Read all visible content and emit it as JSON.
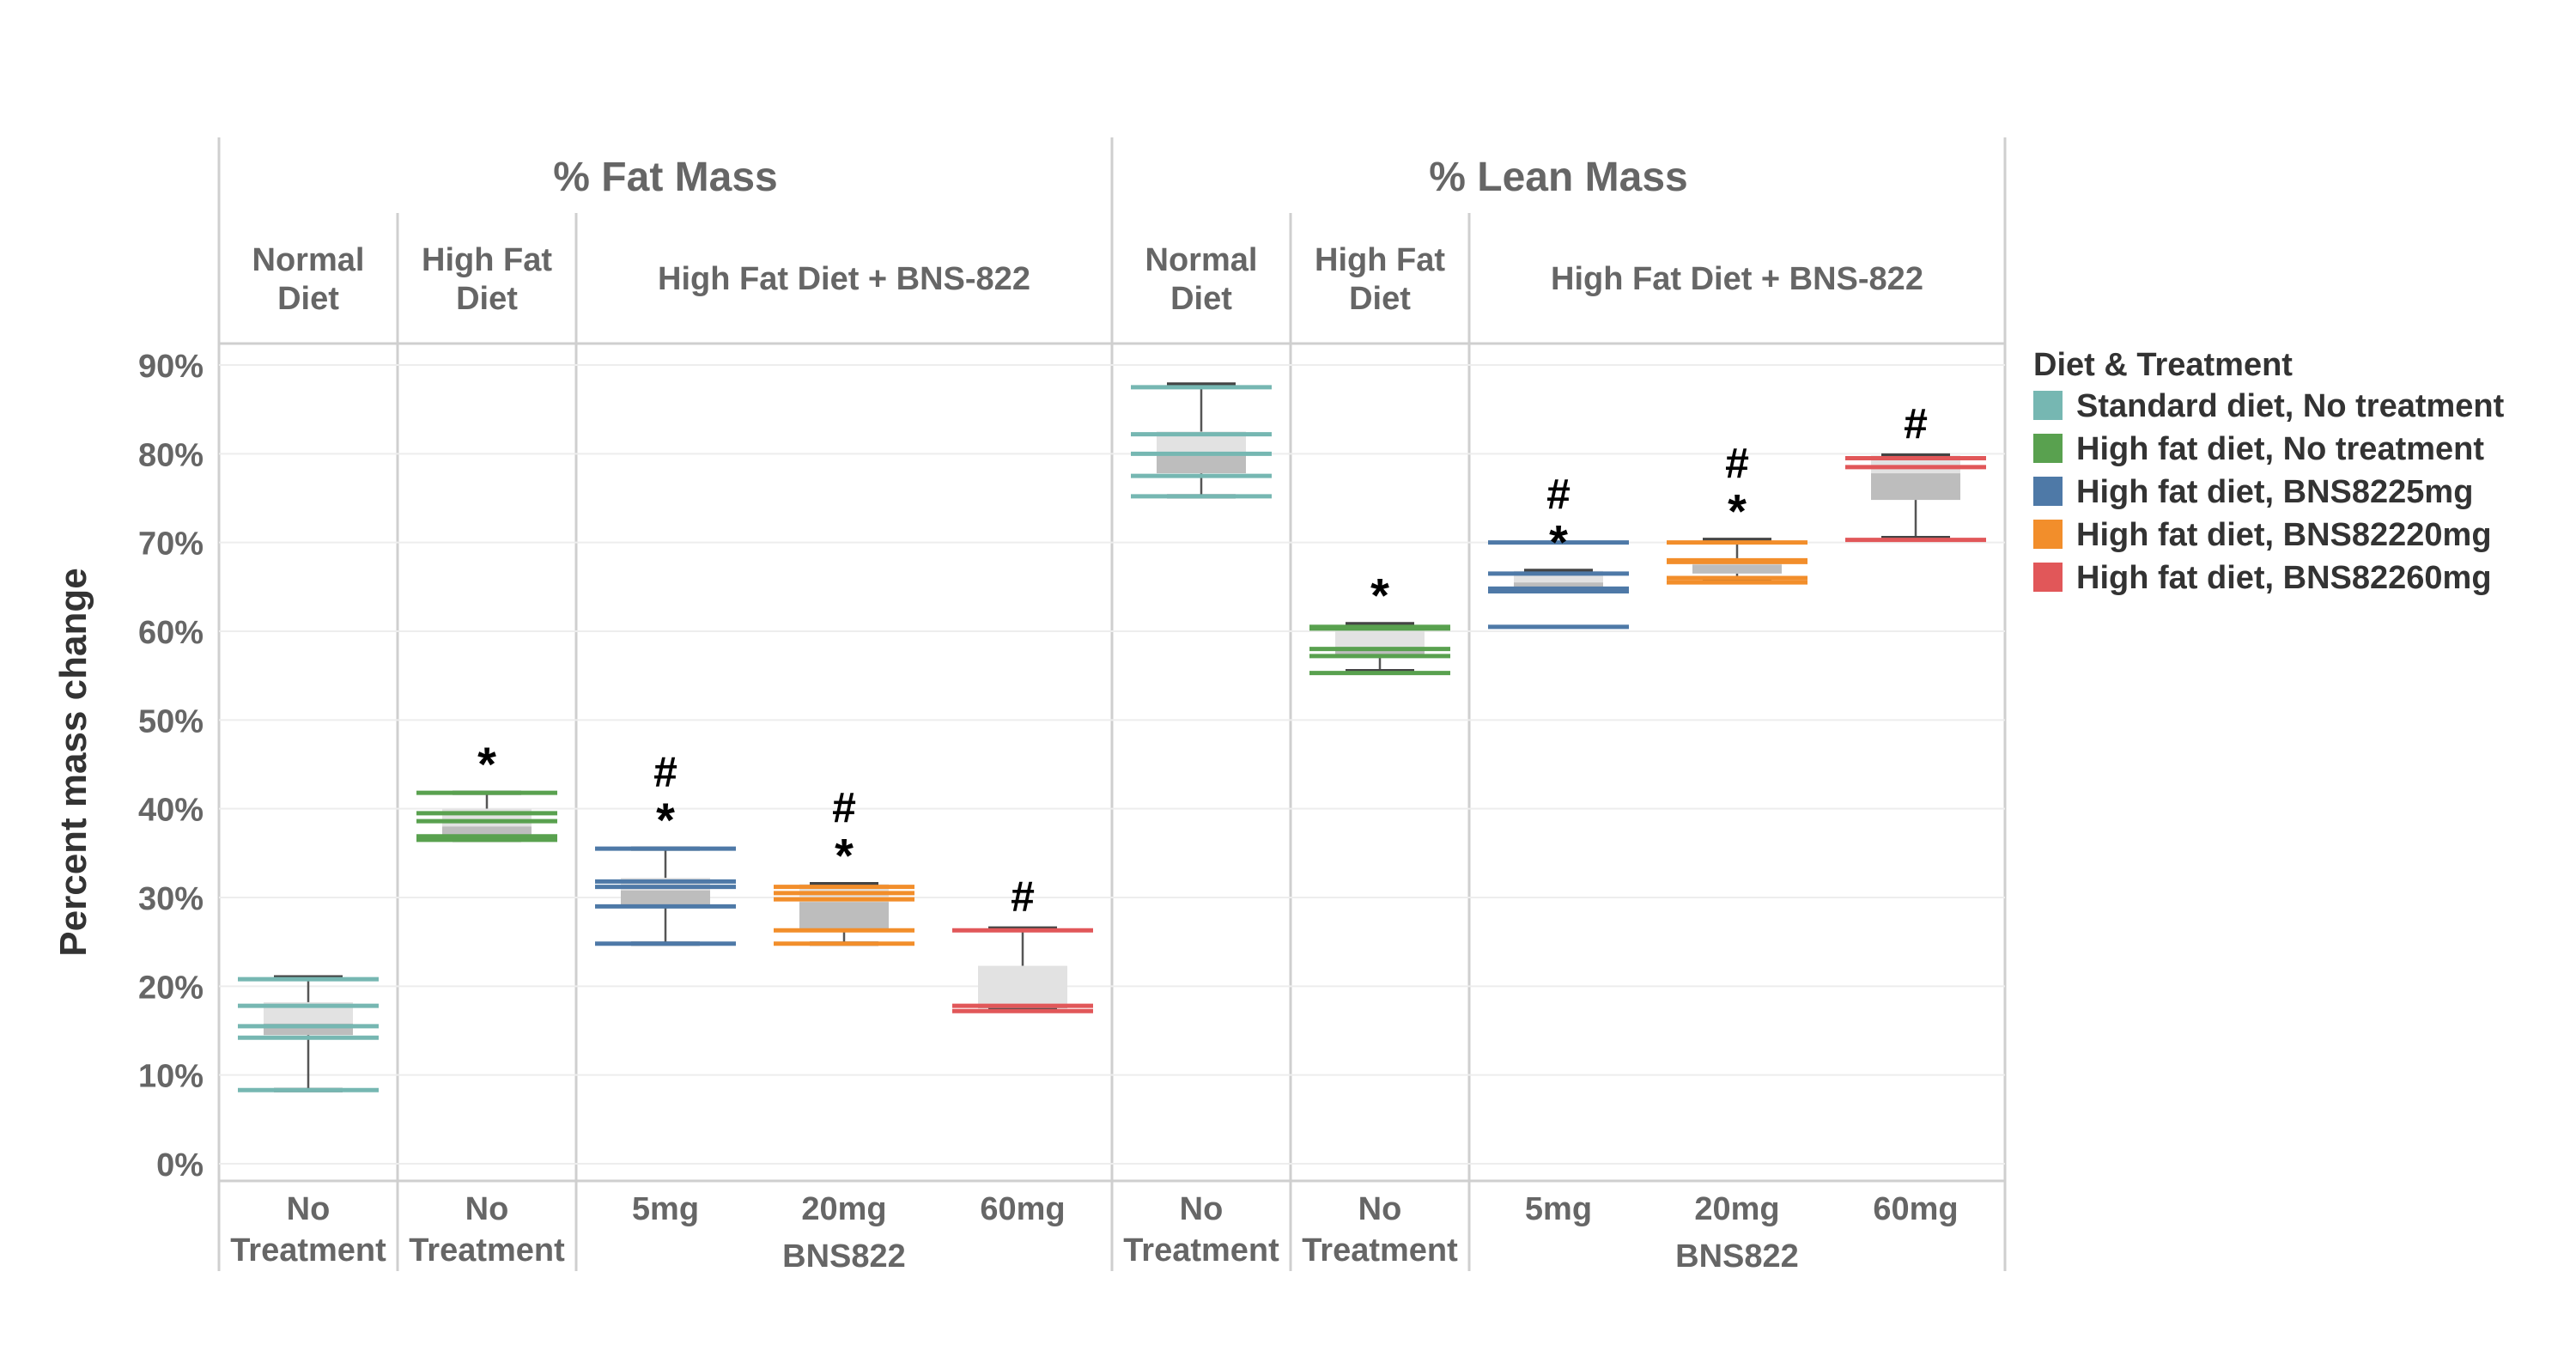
{
  "chart_data": {
    "type": "box",
    "ylabel": "Percent mass change",
    "yticks": [
      "0%",
      "10%",
      "20%",
      "30%",
      "40%",
      "50%",
      "60%",
      "70%",
      "80%",
      "90%"
    ],
    "ylim": [
      0,
      92
    ],
    "grid": true,
    "legend": {
      "title": "Diet & Treatment",
      "position": "right",
      "entries": [
        {
          "label": "Standard diet, No treatment",
          "color": "#76b7b2"
        },
        {
          "label": "High fat diet, No treatment",
          "color": "#59a14f"
        },
        {
          "label": "High fat diet, BNS8225mg",
          "color": "#4e79a7"
        },
        {
          "label": "High fat diet, BNS82220mg",
          "color": "#f28e2b"
        },
        {
          "label": "High fat diet, BNS82260mg",
          "color": "#e15759"
        }
      ]
    },
    "panels": [
      {
        "title": "% Fat Mass",
        "groups": [
          {
            "label": [
              "Normal",
              "Diet"
            ]
          },
          {
            "label": [
              "High Fat",
              "Diet"
            ]
          },
          {
            "label": [
              "High Fat Diet + BNS-822"
            ]
          }
        ],
        "sublabel": "BNS822",
        "categories": [
          {
            "label": [
              "No",
              "Treatment"
            ],
            "series": 0,
            "min": 8.3,
            "q1": 14.5,
            "median": 15.8,
            "q3": 18.2,
            "max": 21.0,
            "points": [
              8.3,
              14.2,
              15.5,
              17.8,
              20.8
            ],
            "sig": ""
          },
          {
            "label": [
              "No",
              "Treatment"
            ],
            "series": 1,
            "min": 36.5,
            "q1": 36.8,
            "median": 38.0,
            "q3": 40.0,
            "max": 41.8,
            "points": [
              36.5,
              36.9,
              38.6,
              39.5,
              41.8
            ],
            "sig": "*"
          },
          {
            "label": [
              "5mg"
            ],
            "series": 2,
            "min": 24.8,
            "q1": 29.2,
            "median": 30.8,
            "q3": 32.2,
            "max": 35.5,
            "points": [
              24.8,
              29.0,
              31.2,
              31.8,
              35.5
            ],
            "sig": "*#"
          },
          {
            "label": [
              "20mg"
            ],
            "series": 3,
            "min": 24.8,
            "q1": 26.5,
            "median": 29.5,
            "q3": 31.5,
            "max": 31.5,
            "points": [
              24.8,
              26.3,
              29.8,
              30.5,
              31.2
            ],
            "sig": "*#"
          },
          {
            "label": [
              "60mg"
            ],
            "series": 4,
            "min": 17.3,
            "q1": 17.5,
            "median": 17.8,
            "q3": 22.3,
            "max": 26.5,
            "points": [
              17.2,
              17.8,
              26.3
            ],
            "sig": "#"
          }
        ]
      },
      {
        "title": "% Lean Mass",
        "groups": [
          {
            "label": [
              "Normal",
              "Diet"
            ]
          },
          {
            "label": [
              "High Fat",
              "Diet"
            ]
          },
          {
            "label": [
              "High Fat Diet + BNS-822"
            ]
          }
        ],
        "sublabel": "BNS822",
        "categories": [
          {
            "label": [
              "No",
              "Treatment"
            ],
            "series": 0,
            "min": 75.2,
            "q1": 77.8,
            "median": 80.0,
            "q3": 82.5,
            "max": 87.8,
            "points": [
              75.2,
              77.5,
              80.0,
              82.2,
              87.5
            ],
            "sig": ""
          },
          {
            "label": [
              "No",
              "Treatment"
            ],
            "series": 1,
            "min": 55.5,
            "q1": 57.0,
            "median": 58.0,
            "q3": 60.5,
            "max": 60.8,
            "points": [
              55.3,
              57.2,
              58.0,
              60.3,
              60.5
            ],
            "sig": "*"
          },
          {
            "label": [
              "5mg"
            ],
            "series": 2,
            "min": 64.5,
            "q1": 64.8,
            "median": 65.5,
            "q3": 66.8,
            "max": 66.8,
            "points": [
              60.5,
              64.5,
              64.8,
              66.5,
              70.0
            ],
            "sig": "*#"
          },
          {
            "label": [
              "20mg"
            ],
            "series": 3,
            "min": 65.8,
            "q1": 66.5,
            "median": 67.5,
            "q3": 68.2,
            "max": 70.3,
            "points": [
              65.5,
              66.0,
              67.8,
              68.0,
              70.0
            ],
            "sig": "*#"
          },
          {
            "label": [
              "60mg"
            ],
            "series": 4,
            "min": 70.5,
            "q1": 74.8,
            "median": 77.8,
            "q3": 79.8,
            "max": 79.8,
            "points": [
              70.3,
              78.5,
              79.5
            ],
            "sig": "#"
          }
        ]
      }
    ]
  }
}
